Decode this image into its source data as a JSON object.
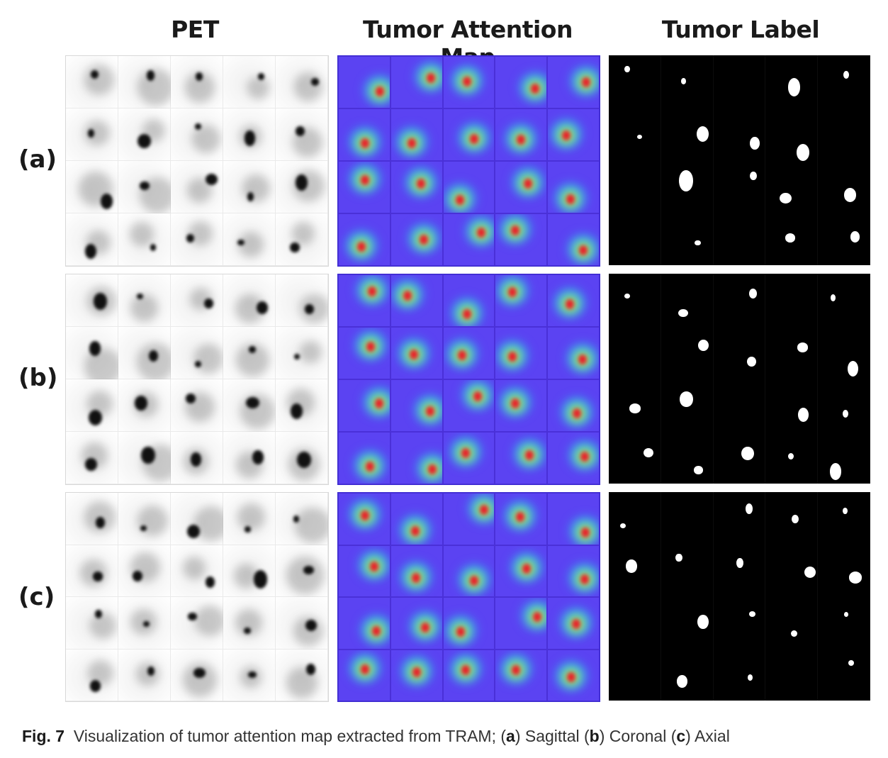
{
  "columns": {
    "pet": "PET",
    "attention": "Tumor Attention Map",
    "label": "Tumor Label"
  },
  "rows": [
    "(a)",
    "(b)",
    "(c)"
  ],
  "caption": {
    "fig": "Fig. 7",
    "text_1": "Visualization of tumor attention map extracted from TRAM; (",
    "a": "a",
    "text_2": ") Sagittal (",
    "b": "b",
    "text_3": ") Coronal (",
    "c": "c",
    "text_4": ") Axial"
  }
}
